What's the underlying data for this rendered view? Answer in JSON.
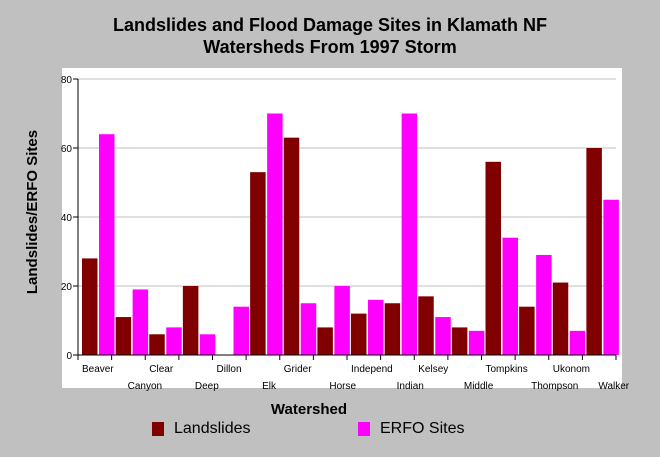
{
  "chart_data": {
    "type": "bar",
    "title_line1": "Landslides and Flood Damage Sites in Klamath NF",
    "title_line2": "Watersheds From 1997 Storm",
    "xlabel": "Watershed",
    "ylabel": "Landslides/ERFO Sites",
    "ylim": [
      0,
      80
    ],
    "yticks": [
      0,
      20,
      40,
      60,
      80
    ],
    "grid": true,
    "legend_placement": "bottom",
    "categories": [
      "Beaver",
      "Canyon",
      "Clear",
      "Deep",
      "Dillon",
      "Elk",
      "Grider",
      "Horse",
      "Independ",
      "Indian",
      "Kelsey",
      "Middle",
      "Tompkins",
      "Thompson",
      "Ukonom",
      "Walker"
    ],
    "series": [
      {
        "name": "Landslides",
        "color": "#800000",
        "values": [
          28,
          11,
          6,
          20,
          0,
          53,
          63,
          8,
          12,
          15,
          17,
          8,
          56,
          14,
          21,
          60
        ]
      },
      {
        "name": "ERFO Sites",
        "color": "#ff00ff",
        "values": [
          64,
          19,
          8,
          6,
          14,
          70,
          15,
          20,
          16,
          70,
          11,
          7,
          34,
          29,
          7,
          45
        ]
      }
    ]
  },
  "colors": {
    "background": "#c0c0c0",
    "plot_background": "#ffffff",
    "gridline": "#c0c0c0"
  }
}
